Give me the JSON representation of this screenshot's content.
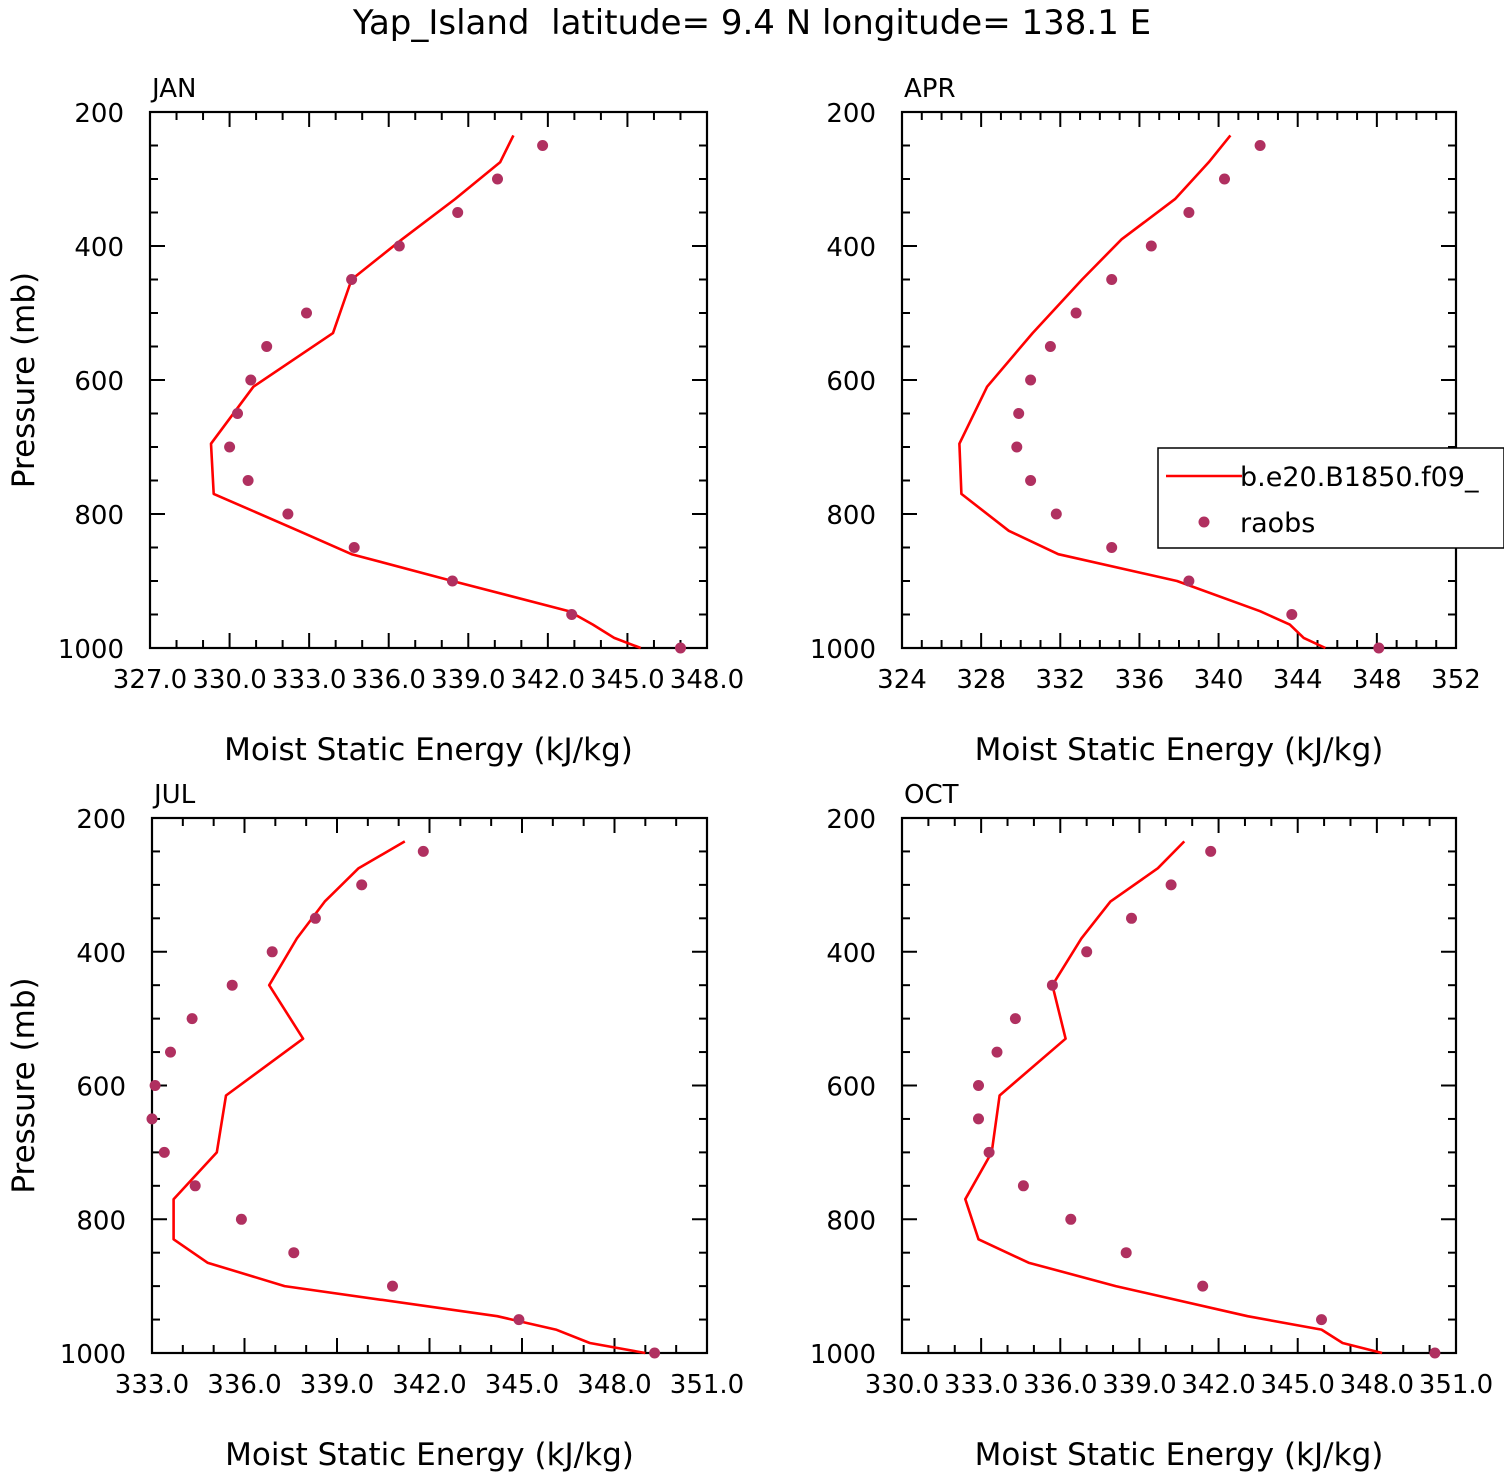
{
  "figure_title": "Yap_Island  latitude= 9.4 N longitude= 138.1 E",
  "legend": {
    "entries": [
      {
        "label": "b.e20.B1850.f09_",
        "kind": "line",
        "color": "#ff0000"
      },
      {
        "label": "raobs",
        "kind": "marker",
        "color": "#b03060"
      }
    ],
    "placement": "right side of APR panel"
  },
  "colors": {
    "model": "#ff0000",
    "obs": "#b03060",
    "frame": "#000000"
  },
  "chart_data": [
    {
      "type": "line",
      "panel": "JAN",
      "title": "JAN",
      "xlabel": "Moist Static Energy (kJ/kg)",
      "ylabel": "Pressure (mb)",
      "xlim": [
        327.0,
        348.0
      ],
      "ylim": [
        1000,
        200
      ],
      "xticks": [
        327.0,
        330.0,
        333.0,
        336.0,
        339.0,
        342.0,
        345.0,
        348.0
      ],
      "xtick_labels": [
        "327.0",
        "330.0",
        "333.0",
        "336.0",
        "339.0",
        "342.0",
        "345.0",
        "348.0"
      ],
      "xtick_minor": 1.0,
      "yticks": [
        200,
        400,
        600,
        800,
        1000
      ],
      "ytick_minor": 50,
      "series": [
        {
          "name": "b.e20.B1850.f09_",
          "style": "line",
          "x": [
            345.5,
            344.5,
            343.7,
            342.8,
            338.4,
            334.6,
            332.6,
            329.4,
            329.3,
            330.9,
            333.9,
            334.6,
            336.5,
            338.5,
            340.2,
            340.7
          ],
          "y": [
            1000,
            985,
            965,
            945,
            900,
            860,
            825,
            770,
            695,
            610,
            530,
            450,
            390,
            330,
            275,
            235
          ]
        },
        {
          "name": "raobs",
          "style": "marker",
          "x": [
            347.0,
            342.9,
            338.4,
            334.7,
            332.2,
            330.7,
            330.0,
            330.3,
            330.8,
            331.4,
            332.9,
            334.6,
            336.4,
            338.6,
            340.1,
            341.8
          ],
          "y": [
            1000,
            950,
            900,
            850,
            800,
            750,
            700,
            650,
            600,
            550,
            500,
            450,
            400,
            350,
            300,
            250
          ]
        }
      ]
    },
    {
      "type": "line",
      "panel": "APR",
      "title": "APR",
      "xlabel": "Moist Static Energy (kJ/kg)",
      "ylabel": "",
      "xlim": [
        324,
        352
      ],
      "ylim": [
        1000,
        200
      ],
      "xticks": [
        324,
        328,
        332,
        336,
        340,
        344,
        348,
        352
      ],
      "xtick_labels": [
        "324",
        "328",
        "332",
        "336",
        "340",
        "344",
        "348",
        "352"
      ],
      "xtick_minor": 1,
      "yticks": [
        200,
        400,
        600,
        800,
        1000
      ],
      "ytick_minor": 50,
      "series": [
        {
          "name": "b.e20.B1850.f09_",
          "style": "line",
          "x": [
            345.4,
            344.3,
            343.6,
            342.1,
            337.9,
            331.9,
            329.4,
            327.0,
            326.9,
            328.3,
            330.6,
            333.1,
            335.1,
            337.8,
            339.5,
            340.6
          ],
          "y": [
            1000,
            985,
            965,
            945,
            900,
            860,
            825,
            770,
            695,
            610,
            530,
            450,
            390,
            330,
            275,
            235
          ]
        },
        {
          "name": "raobs",
          "style": "marker",
          "x": [
            348.1,
            343.7,
            338.5,
            334.6,
            331.8,
            330.5,
            329.8,
            329.9,
            330.5,
            331.5,
            332.8,
            334.6,
            336.6,
            338.5,
            340.3,
            342.1
          ],
          "y": [
            1000,
            950,
            900,
            850,
            800,
            750,
            700,
            650,
            600,
            550,
            500,
            450,
            400,
            350,
            300,
            250
          ]
        }
      ]
    },
    {
      "type": "line",
      "panel": "JUL",
      "title": "JUL",
      "xlabel": "Moist Static Energy (kJ/kg)",
      "ylabel": "Pressure (mb)",
      "xlim": [
        333.0,
        351.0
      ],
      "ylim": [
        1000,
        200
      ],
      "xticks": [
        333.0,
        336.0,
        339.0,
        342.0,
        345.0,
        348.0,
        351.0
      ],
      "xtick_labels": [
        "333.0",
        "336.0",
        "339.0",
        "342.0",
        "345.0",
        "348.0",
        "351.0"
      ],
      "xtick_minor": 1.0,
      "yticks": [
        200,
        400,
        600,
        800,
        1000
      ],
      "ytick_minor": 50,
      "series": [
        {
          "name": "b.e20.B1850.f09_",
          "style": "line",
          "x": [
            349.0,
            347.2,
            346.1,
            344.2,
            337.3,
            334.8,
            333.7,
            333.7,
            335.1,
            335.4,
            337.9,
            336.8,
            337.7,
            338.6,
            339.7,
            341.2
          ],
          "y": [
            1000,
            985,
            965,
            945,
            900,
            865,
            830,
            770,
            700,
            615,
            530,
            450,
            380,
            325,
            275,
            235
          ]
        },
        {
          "name": "raobs",
          "style": "marker",
          "x": [
            349.3,
            344.9,
            340.8,
            337.6,
            335.9,
            334.4,
            333.4,
            333.0,
            333.1,
            333.6,
            334.3,
            335.6,
            336.9,
            338.3,
            339.8,
            341.8
          ],
          "y": [
            1000,
            950,
            900,
            850,
            800,
            750,
            700,
            650,
            600,
            550,
            500,
            450,
            400,
            350,
            300,
            250
          ]
        }
      ]
    },
    {
      "type": "line",
      "panel": "OCT",
      "title": "OCT",
      "xlabel": "Moist Static Energy (kJ/kg)",
      "ylabel": "",
      "xlim": [
        330.0,
        351.0
      ],
      "ylim": [
        1000,
        200
      ],
      "xticks": [
        330.0,
        333.0,
        336.0,
        339.0,
        342.0,
        345.0,
        348.0,
        351.0
      ],
      "xtick_labels": [
        "330.0",
        "333.0",
        "336.0",
        "339.0",
        "342.0",
        "345.0",
        "348.0",
        "351.0"
      ],
      "xtick_minor": 1.0,
      "yticks": [
        200,
        400,
        600,
        800,
        1000
      ],
      "ytick_minor": 50,
      "series": [
        {
          "name": "b.e20.B1850.f09_",
          "style": "line",
          "x": [
            348.2,
            346.7,
            345.9,
            343.1,
            338.1,
            334.8,
            332.9,
            332.4,
            333.4,
            333.7,
            336.2,
            335.7,
            336.8,
            337.9,
            339.7,
            340.7
          ],
          "y": [
            1000,
            985,
            965,
            945,
            900,
            865,
            830,
            770,
            700,
            615,
            530,
            450,
            380,
            325,
            275,
            235
          ]
        },
        {
          "name": "raobs",
          "style": "marker",
          "x": [
            350.2,
            345.9,
            341.4,
            338.5,
            336.4,
            334.6,
            333.3,
            332.9,
            332.9,
            333.6,
            334.3,
            335.7,
            337.0,
            338.7,
            340.2,
            341.7
          ],
          "y": [
            1000,
            950,
            900,
            850,
            800,
            750,
            700,
            650,
            600,
            550,
            500,
            450,
            400,
            350,
            300,
            250
          ]
        }
      ]
    }
  ]
}
